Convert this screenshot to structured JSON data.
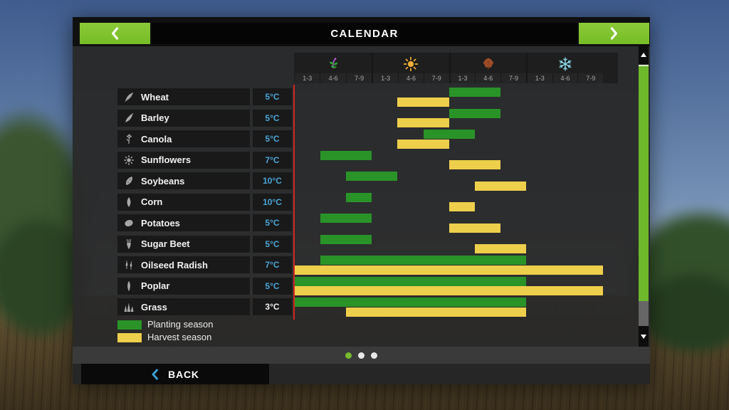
{
  "window": {
    "title": "CALENDAR"
  },
  "colors": {
    "planting_green": "#2a9328",
    "harvest_yellow": "#eecf4b",
    "accent_green": "#7fc32f",
    "temp_blue": "#4aa6d8",
    "current_day_line_red": "#d2251f"
  },
  "calendar": {
    "seasons": [
      {
        "name": "spring",
        "icon": "spring-icon",
        "periods": [
          "1-3",
          "4-6",
          "7-9"
        ]
      },
      {
        "name": "summer",
        "icon": "summer-icon",
        "periods": [
          "1-3",
          "4-6",
          "7-9"
        ]
      },
      {
        "name": "autumn",
        "icon": "autumn-icon",
        "periods": [
          "1-3",
          "4-6",
          "7-9"
        ]
      },
      {
        "name": "winter",
        "icon": "winter-icon",
        "periods": [
          "1-3",
          "4-6",
          "7-9"
        ]
      }
    ],
    "crops": [
      {
        "name": "Wheat",
        "icon": "wheat-icon",
        "germination_temp": "5°C",
        "temp_style": "blue",
        "planting_cols": [
          7,
          8
        ],
        "harvest_cols": [
          5,
          6
        ]
      },
      {
        "name": "Barley",
        "icon": "barley-icon",
        "germination_temp": "5°C",
        "temp_style": "blue",
        "planting_cols": [
          7,
          8
        ],
        "harvest_cols": [
          5,
          6
        ]
      },
      {
        "name": "Canola",
        "icon": "canola-icon",
        "germination_temp": "5°C",
        "temp_style": "blue",
        "planting_cols": [
          6,
          7
        ],
        "harvest_cols": [
          5,
          6
        ]
      },
      {
        "name": "Sunflowers",
        "icon": "sunflower-icon",
        "germination_temp": "7°C",
        "temp_style": "blue",
        "planting_cols": [
          2,
          3
        ],
        "harvest_cols": [
          7,
          8
        ]
      },
      {
        "name": "Soybeans",
        "icon": "soybean-icon",
        "germination_temp": "10°C",
        "temp_style": "blue",
        "planting_cols": [
          3,
          4
        ],
        "harvest_cols": [
          8,
          9
        ]
      },
      {
        "name": "Corn",
        "icon": "corn-icon",
        "germination_temp": "10°C",
        "temp_style": "blue",
        "planting_cols": [
          3,
          3
        ],
        "harvest_cols": [
          7,
          7
        ]
      },
      {
        "name": "Potatoes",
        "icon": "potato-icon",
        "germination_temp": "5°C",
        "temp_style": "blue",
        "planting_cols": [
          2,
          3
        ],
        "harvest_cols": [
          7,
          8
        ]
      },
      {
        "name": "Sugar Beet",
        "icon": "sugar-beet-icon",
        "germination_temp": "5°C",
        "temp_style": "blue",
        "planting_cols": [
          2,
          3
        ],
        "harvest_cols": [
          8,
          9
        ]
      },
      {
        "name": "Oilseed Radish",
        "icon": "oilseed-radish-icon",
        "germination_temp": "7°C",
        "temp_style": "blue",
        "planting_cols": [
          2,
          9
        ],
        "harvest_cols": [
          1,
          12
        ]
      },
      {
        "name": "Poplar",
        "icon": "poplar-icon",
        "germination_temp": "5°C",
        "temp_style": "blue",
        "planting_cols": [
          1,
          9
        ],
        "harvest_cols": [
          1,
          12
        ]
      },
      {
        "name": "Grass",
        "icon": "grass-icon",
        "germination_temp": "3°C",
        "temp_style": "white",
        "planting_cols": [
          1,
          9
        ],
        "harvest_cols": [
          3,
          9
        ]
      }
    ],
    "legend": [
      {
        "label": "Planting season",
        "color": "#2a9328"
      },
      {
        "label": "Harvest season",
        "color": "#eecf4b"
      }
    ]
  },
  "pagination": {
    "dots": [
      "active",
      "inactive",
      "inactive"
    ]
  },
  "footer": {
    "back_label": "BACK"
  }
}
